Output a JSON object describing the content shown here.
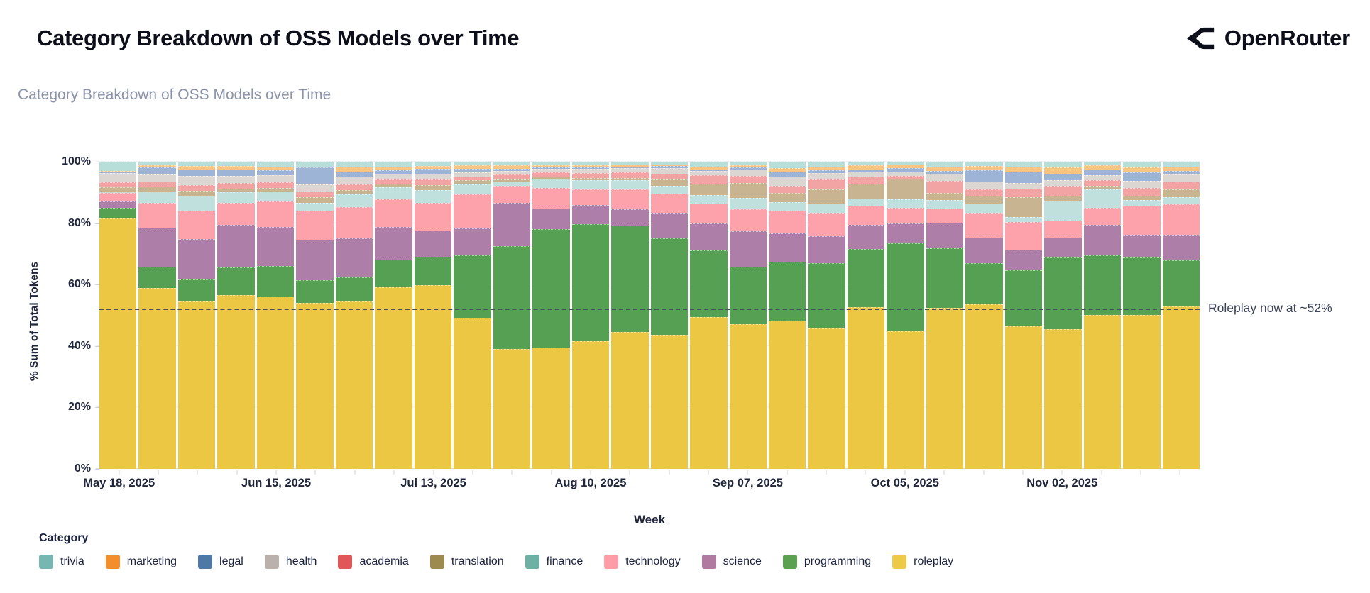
{
  "header": {
    "title": "Category Breakdown of OSS Models over Time",
    "subtitle": "Category Breakdown of OSS Models over Time",
    "brand": "OpenRouter"
  },
  "chart_data": {
    "type": "bar",
    "variant": "stacked-100pct",
    "title": "Category Breakdown of OSS Models over Time",
    "xlabel": "Week",
    "ylabel": "% Sum of Total Tokens",
    "ylim": [
      0,
      100
    ],
    "grid": "horizontal",
    "legend_position": "bottom",
    "legend_title": "Category",
    "y_ticks": [
      "0%",
      "20%",
      "40%",
      "60%",
      "80%",
      "100%"
    ],
    "annotation": {
      "text": "Roleplay now at ~52%",
      "y_pct": 52.2
    },
    "stack_order_bottom_to_top": [
      "roleplay",
      "programming",
      "science",
      "technology",
      "finance",
      "translation",
      "academia",
      "health",
      "legal",
      "marketing",
      "trivia"
    ],
    "categories": [
      {
        "name": "trivia",
        "legend_color": "#76b7b2",
        "bar_color": "#b7ded8"
      },
      {
        "name": "marketing",
        "legend_color": "#f28e2b",
        "bar_color": "#f8c481"
      },
      {
        "name": "legal",
        "legend_color": "#4e79a7",
        "bar_color": "#9db4d6"
      },
      {
        "name": "health",
        "legend_color": "#bab0ac",
        "bar_color": "#dcd6d3"
      },
      {
        "name": "academia",
        "legend_color": "#e15759",
        "bar_color": "#f2a4a5"
      },
      {
        "name": "translation",
        "legend_color": "#9c8a4e",
        "bar_color": "#c9b491"
      },
      {
        "name": "finance",
        "legend_color": "#6fb0a5",
        "bar_color": "#bfe0dc"
      },
      {
        "name": "technology",
        "legend_color": "#ff9da7",
        "bar_color": "#fda2ab"
      },
      {
        "name": "science",
        "legend_color": "#b07aa1",
        "bar_color": "#ad7ea7"
      },
      {
        "name": "programming",
        "legend_color": "#59a14f",
        "bar_color": "#55a052"
      },
      {
        "name": "roleplay",
        "legend_color": "#edc948",
        "bar_color": "#ecc743"
      }
    ],
    "weeks": [
      {
        "tick": "May 18, 2025",
        "values": {
          "roleplay": 81.5,
          "programming": 3.6,
          "science": 1.9,
          "technology": 2.8,
          "finance": 0.6,
          "translation": 1.2,
          "academia": 1.7,
          "health": 3.0,
          "legal": 0.5,
          "marketing": 0.2,
          "trivia": 3.0
        }
      },
      {
        "values": {
          "roleplay": 58.8,
          "programming": 7.1,
          "science": 12.7,
          "technology": 8.0,
          "finance": 3.8,
          "translation": 1.6,
          "academia": 1.6,
          "health": 2.2,
          "legal": 2.3,
          "marketing": 0.8,
          "trivia": 1.1
        }
      },
      {
        "values": {
          "roleplay": 54.5,
          "programming": 7.1,
          "science": 13.2,
          "technology": 9.2,
          "finance": 5.0,
          "translation": 1.5,
          "academia": 2.0,
          "health": 2.8,
          "legal": 2.2,
          "marketing": 1.2,
          "trivia": 1.3
        }
      },
      {
        "values": {
          "roleplay": 56.5,
          "programming": 9.0,
          "science": 13.9,
          "technology": 7.1,
          "finance": 3.5,
          "translation": 1.3,
          "academia": 1.7,
          "health": 2.5,
          "legal": 1.9,
          "marketing": 1.2,
          "trivia": 1.4
        }
      },
      {
        "tick": "Jun 15, 2025",
        "values": {
          "roleplay": 56.2,
          "programming": 9.9,
          "science": 12.6,
          "technology": 8.4,
          "finance": 3.1,
          "translation": 1.3,
          "academia": 1.8,
          "health": 2.3,
          "legal": 1.6,
          "marketing": 1.3,
          "trivia": 1.5
        }
      },
      {
        "values": {
          "roleplay": 54.0,
          "programming": 7.5,
          "science": 13.0,
          "technology": 9.5,
          "finance": 2.6,
          "translation": 1.9,
          "academia": 1.9,
          "health": 2.3,
          "legal": 5.4,
          "marketing": 0.4,
          "trivia": 1.5
        }
      },
      {
        "values": {
          "roleplay": 54.5,
          "programming": 7.9,
          "science": 12.6,
          "technology": 10.2,
          "finance": 4.3,
          "translation": 1.3,
          "academia": 1.8,
          "health": 2.6,
          "legal": 1.6,
          "marketing": 1.6,
          "trivia": 1.6
        }
      },
      {
        "values": {
          "roleplay": 59.2,
          "programming": 9.0,
          "science": 10.6,
          "technology": 9.0,
          "finance": 4.0,
          "translation": 1.0,
          "academia": 1.5,
          "health": 1.9,
          "legal": 1.0,
          "marketing": 1.1,
          "trivia": 1.7
        }
      },
      {
        "tick": "Jul 13, 2025",
        "values": {
          "roleplay": 59.8,
          "programming": 9.3,
          "science": 8.5,
          "technology": 9.0,
          "finance": 4.2,
          "translation": 1.7,
          "academia": 1.8,
          "health": 1.8,
          "legal": 1.6,
          "marketing": 1.0,
          "trivia": 1.3
        }
      },
      {
        "values": {
          "roleplay": 49.2,
          "programming": 20.3,
          "science": 8.8,
          "technology": 11.1,
          "finance": 3.2,
          "translation": 1.3,
          "academia": 1.3,
          "health": 1.3,
          "legal": 1.3,
          "marketing": 1.1,
          "trivia": 1.1
        }
      },
      {
        "values": {
          "roleplay": 39.1,
          "programming": 33.5,
          "science": 14.0,
          "technology": 5.5,
          "finance": 1.4,
          "translation": 0.8,
          "academia": 1.5,
          "health": 1.2,
          "legal": 0.8,
          "marketing": 1.0,
          "trivia": 1.2
        }
      },
      {
        "values": {
          "roleplay": 39.5,
          "programming": 38.6,
          "science": 6.7,
          "technology": 6.7,
          "finance": 3.0,
          "translation": 0.7,
          "academia": 1.4,
          "health": 1.1,
          "legal": 0.5,
          "marketing": 0.7,
          "trivia": 1.1
        }
      },
      {
        "tick": "Aug 10, 2025",
        "values": {
          "roleplay": 41.6,
          "programming": 38.1,
          "science": 6.2,
          "technology": 5.1,
          "finance": 3.0,
          "translation": 0.8,
          "academia": 1.6,
          "health": 1.2,
          "legal": 0.6,
          "marketing": 0.7,
          "trivia": 1.1
        }
      },
      {
        "values": {
          "roleplay": 44.5,
          "programming": 34.7,
          "science": 5.3,
          "technology": 6.5,
          "finance": 3.0,
          "translation": 0.8,
          "academia": 1.7,
          "health": 1.4,
          "legal": 0.5,
          "marketing": 0.6,
          "trivia": 1.0
        }
      },
      {
        "values": {
          "roleplay": 43.6,
          "programming": 31.5,
          "science": 8.3,
          "technology": 6.2,
          "finance": 2.5,
          "translation": 2.1,
          "academia": 1.9,
          "health": 1.9,
          "legal": 0.6,
          "marketing": 0.5,
          "trivia": 0.9
        }
      },
      {
        "values": {
          "roleplay": 49.4,
          "programming": 21.8,
          "science": 8.8,
          "technology": 6.3,
          "finance": 2.8,
          "translation": 3.7,
          "academia": 2.9,
          "health": 1.4,
          "legal": 0.4,
          "marketing": 1.0,
          "trivia": 1.5
        }
      },
      {
        "tick": "Sep 07, 2025",
        "values": {
          "roleplay": 47.2,
          "programming": 18.6,
          "science": 11.6,
          "technology": 7.1,
          "finance": 3.7,
          "translation": 4.8,
          "academia": 2.3,
          "health": 2.1,
          "legal": 0.8,
          "marketing": 0.7,
          "trivia": 1.1
        }
      },
      {
        "values": {
          "roleplay": 48.3,
          "programming": 19.1,
          "science": 9.3,
          "technology": 7.3,
          "finance": 2.8,
          "translation": 3.1,
          "academia": 2.3,
          "health": 2.9,
          "legal": 1.7,
          "marketing": 1.2,
          "trivia": 2.0
        }
      },
      {
        "values": {
          "roleplay": 45.7,
          "programming": 21.3,
          "science": 8.7,
          "technology": 7.7,
          "finance": 2.9,
          "translation": 4.7,
          "academia": 3.2,
          "health": 2.1,
          "legal": 0.9,
          "marketing": 1.3,
          "trivia": 1.5
        }
      },
      {
        "values": {
          "roleplay": 52.6,
          "programming": 19.0,
          "science": 7.8,
          "technology": 6.3,
          "finance": 2.3,
          "translation": 4.8,
          "academia": 2.4,
          "health": 1.6,
          "legal": 0.7,
          "marketing": 1.3,
          "trivia": 1.2
        }
      },
      {
        "tick": "Oct 05, 2025",
        "values": {
          "roleplay": 44.8,
          "programming": 28.6,
          "science": 6.5,
          "technology": 5.1,
          "finance": 2.8,
          "translation": 6.7,
          "academia": 1.0,
          "health": 1.4,
          "legal": 1.0,
          "marketing": 1.1,
          "trivia": 1.0
        }
      },
      {
        "values": {
          "roleplay": 52.4,
          "programming": 19.4,
          "science": 8.3,
          "technology": 4.7,
          "finance": 2.7,
          "translation": 2.4,
          "academia": 3.9,
          "health": 2.3,
          "legal": 1.0,
          "marketing": 1.2,
          "trivia": 1.7
        }
      },
      {
        "values": {
          "roleplay": 53.5,
          "programming": 13.5,
          "science": 8.3,
          "technology": 8.1,
          "finance": 2.9,
          "translation": 2.6,
          "academia": 2.1,
          "health": 2.5,
          "legal": 3.7,
          "marketing": 1.5,
          "trivia": 1.3
        }
      },
      {
        "values": {
          "roleplay": 46.4,
          "programming": 18.3,
          "science": 6.7,
          "technology": 8.9,
          "finance": 1.7,
          "translation": 6.5,
          "academia": 2.7,
          "health": 1.8,
          "legal": 3.8,
          "marketing": 1.5,
          "trivia": 1.7
        }
      },
      {
        "tick": "Nov 02, 2025",
        "values": {
          "roleplay": 45.4,
          "programming": 23.5,
          "science": 6.5,
          "technology": 5.5,
          "finance": 6.3,
          "translation": 1.8,
          "academia": 3.2,
          "health": 1.8,
          "legal": 2.2,
          "marketing": 2.0,
          "trivia": 1.8
        }
      },
      {
        "values": {
          "roleplay": 50.1,
          "programming": 19.4,
          "science": 10.0,
          "technology": 5.5,
          "finance": 6.1,
          "translation": 1.1,
          "academia": 1.8,
          "health": 1.6,
          "legal": 1.9,
          "marketing": 1.3,
          "trivia": 1.2
        }
      },
      {
        "values": {
          "roleplay": 50.1,
          "programming": 18.8,
          "science": 7.1,
          "technology": 9.8,
          "finance": 1.8,
          "translation": 1.3,
          "academia": 2.5,
          "health": 2.3,
          "legal": 2.8,
          "marketing": 1.6,
          "trivia": 1.9
        }
      },
      {
        "values": {
          "roleplay": 52.8,
          "programming": 15.1,
          "science": 8.0,
          "technology": 10.2,
          "finance": 2.3,
          "translation": 2.5,
          "academia": 2.6,
          "health": 2.4,
          "legal": 1.2,
          "marketing": 1.4,
          "trivia": 1.5
        }
      }
    ]
  }
}
